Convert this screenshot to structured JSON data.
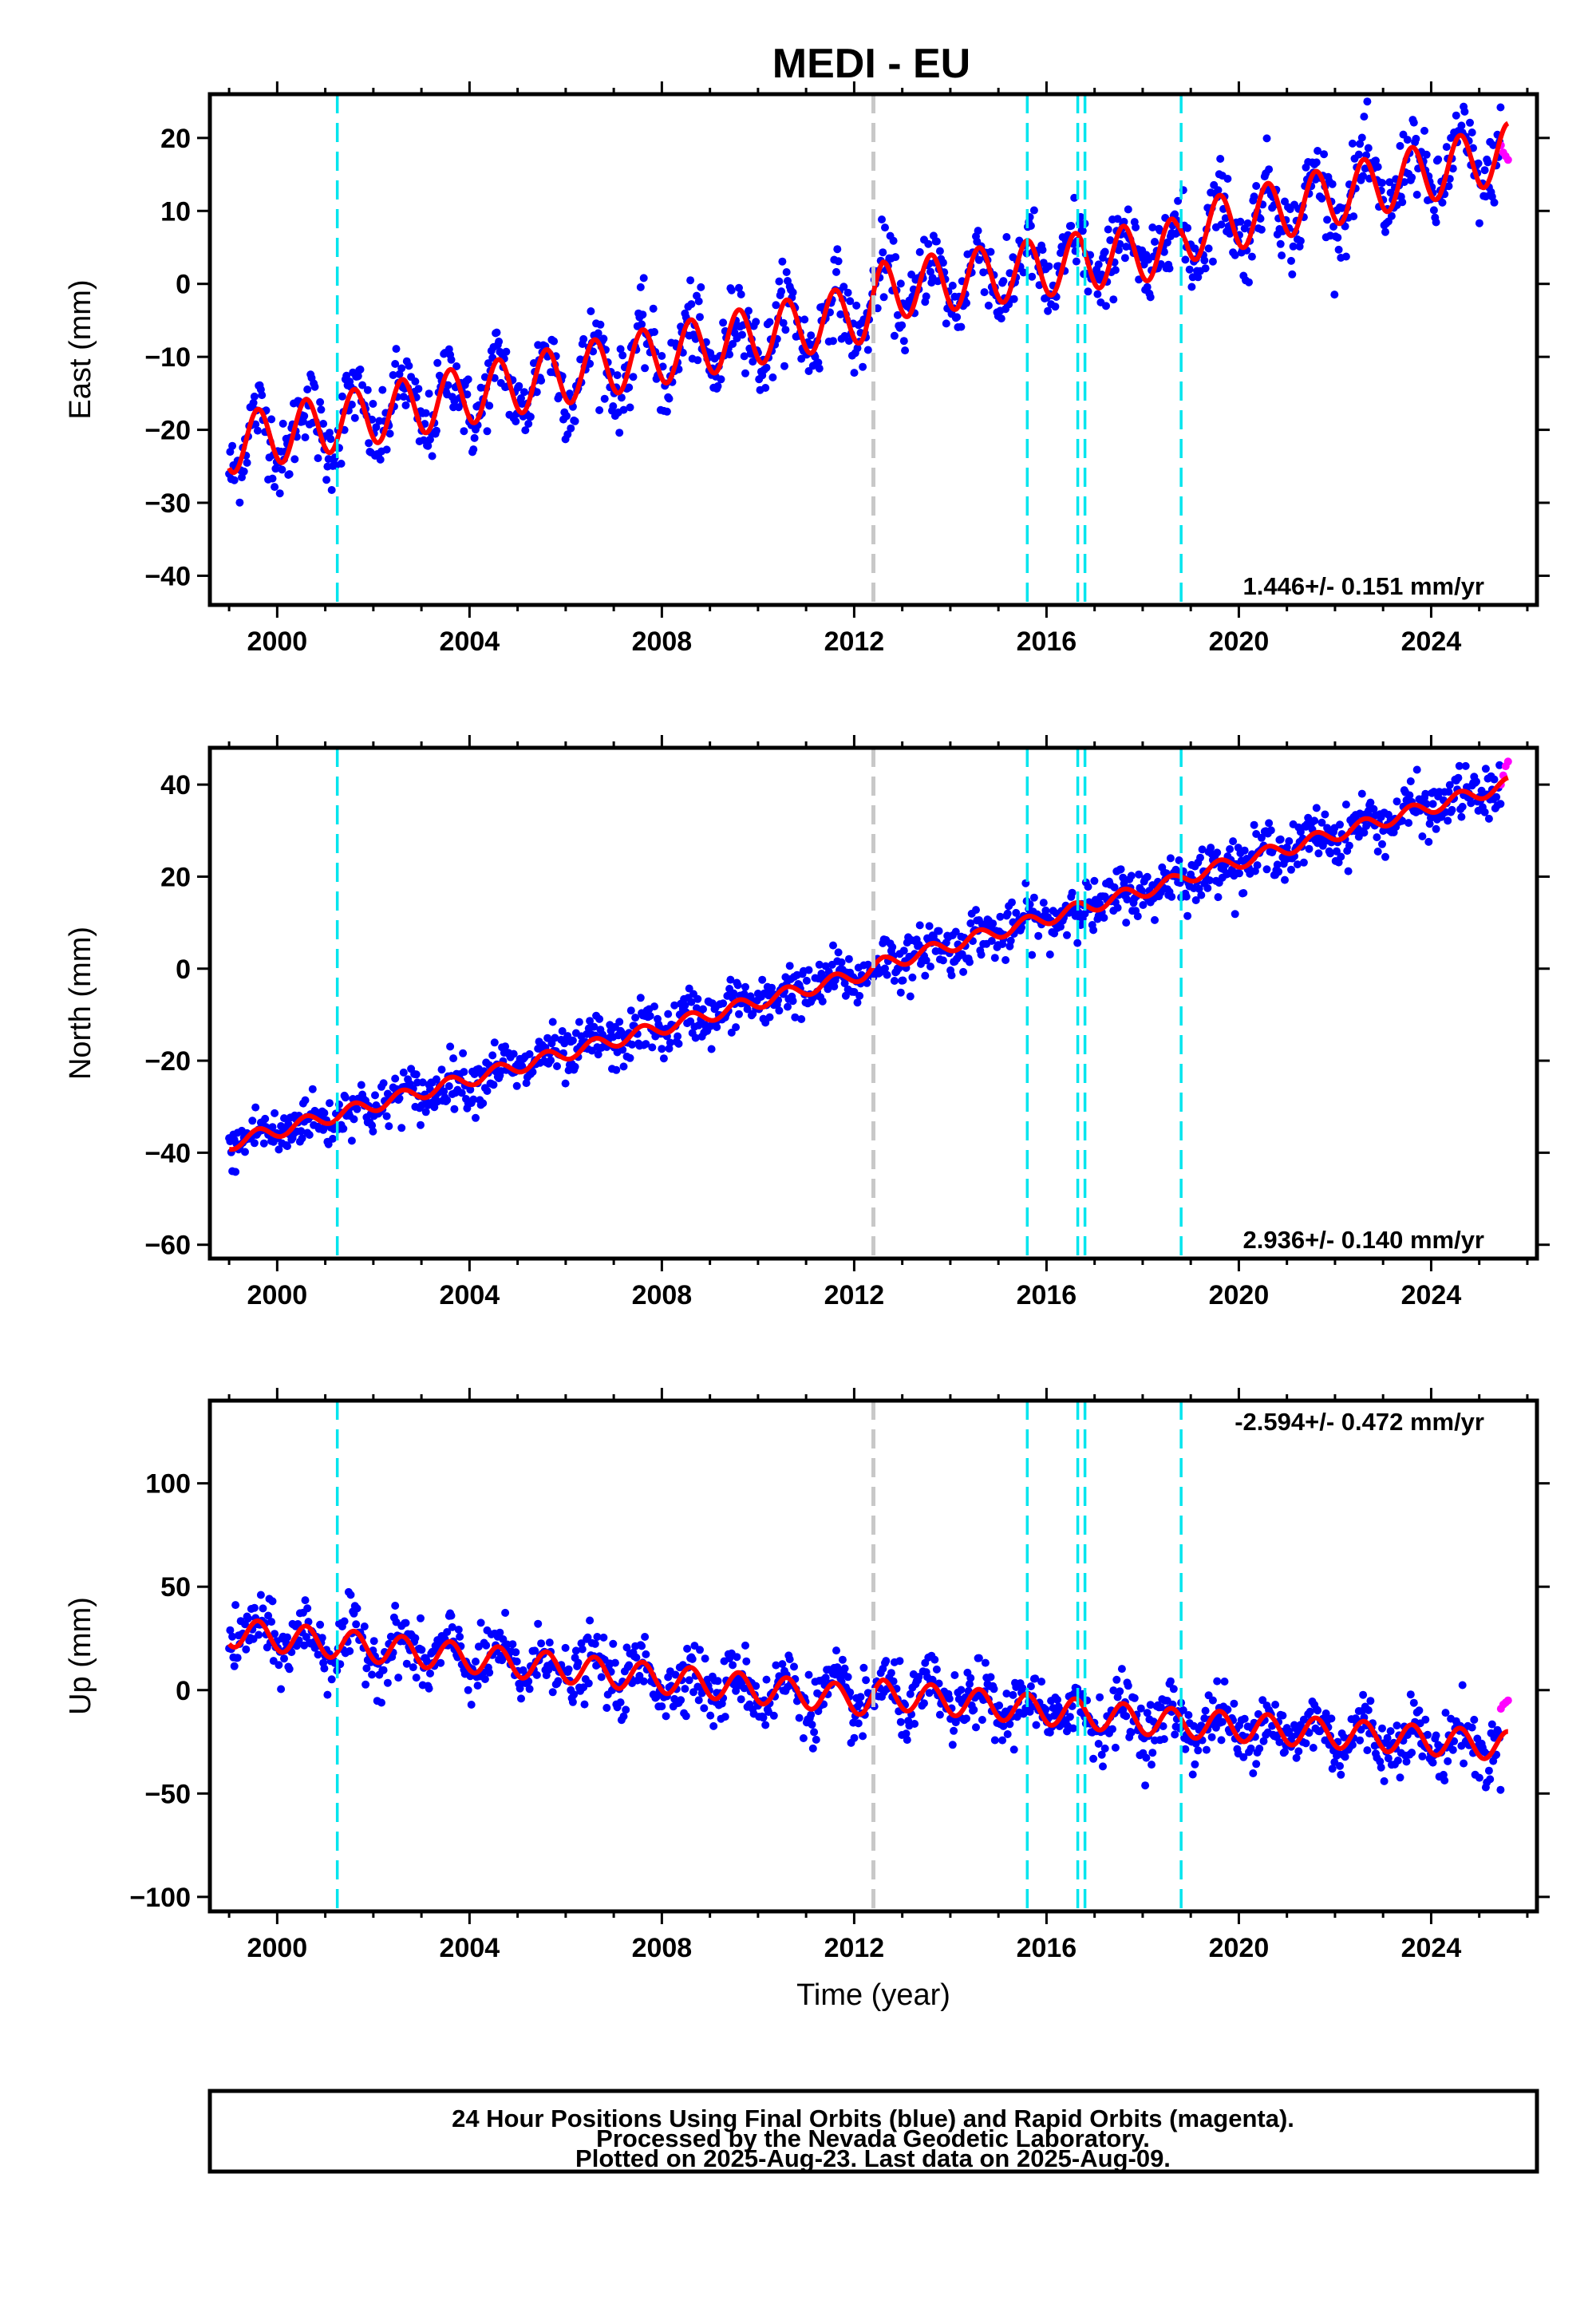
{
  "chart_data": {
    "type": "scatter",
    "title": "MEDI - EU",
    "xlabel": "Time (year)",
    "xlim": [
      1998.6,
      2026.2
    ],
    "xticks": [
      2000,
      2004,
      2008,
      2012,
      2016,
      2020,
      2024
    ],
    "grid": false,
    "colors": {
      "final_orbits": "#0000ff",
      "rapid_orbits": "#ff00ff",
      "model_fit": "#ff0000",
      "equipment_change": "#00e5ee",
      "earthquake": "#c8c8c8"
    },
    "event_lines": {
      "equipment_change": [
        2001.25,
        2015.6,
        2016.65,
        2016.8,
        2018.8
      ],
      "earthquake": [
        2012.4
      ]
    },
    "panels": [
      {
        "key": "east",
        "ylabel": "East (mm)",
        "ylim": [
          -44,
          26
        ],
        "yticks": [
          -40,
          -30,
          -20,
          -10,
          0,
          10,
          20
        ],
        "rate_label": "1.446+/- 0.151 mm/yr",
        "trend_at_years": {
          "x": [
            1999.0,
            2012.2,
            2012.6,
            2018.7,
            2018.9,
            2025.6
          ],
          "y": [
            -22.0,
            -4.0,
            -1.0,
            5.0,
            7.0,
            18.0
          ]
        },
        "seasonal_amplitude": 4,
        "rapid_points": {
          "x": [
            2025.45,
            2025.5,
            2025.55,
            2025.6
          ],
          "y": [
            19.0,
            18.0,
            17.5,
            17.0
          ]
        }
      },
      {
        "key": "north",
        "ylabel": "North (mm)",
        "ylim": [
          -63,
          48
        ],
        "yticks": [
          -60,
          -40,
          -20,
          0,
          20,
          40
        ],
        "rate_label": "2.936+/- 0.140 mm/yr",
        "trend_at_years": {
          "x": [
            1999.0,
            2012.2,
            2012.6,
            2018.7,
            2018.9,
            2025.6
          ],
          "y": [
            -38.0,
            -1.0,
            1.0,
            19.0,
            20.0,
            40.0
          ]
        },
        "seasonal_amplitude": 1.5,
        "rapid_points": {
          "x": [
            2025.45,
            2025.5,
            2025.55,
            2025.6
          ],
          "y": [
            40.0,
            42.0,
            44.0,
            45.0
          ]
        }
      },
      {
        "key": "up",
        "ylabel": "Up (mm)",
        "ylim": [
          -107,
          140
        ],
        "yticks": [
          -100,
          -50,
          0,
          50,
          100
        ],
        "rate_label": "-2.594+/- 0.472 mm/yr",
        "trend_at_years": {
          "x": [
            1999.0,
            2012.2,
            2012.6,
            2018.7,
            2018.9,
            2025.6
          ],
          "y": [
            28.0,
            -5.0,
            -2.0,
            -16.0,
            -16.0,
            -27.0
          ]
        },
        "seasonal_amplitude": 7,
        "rapid_points": {
          "x": [
            2025.45,
            2025.5,
            2025.55,
            2025.6
          ],
          "y": [
            -9.0,
            -7.0,
            -6.0,
            -5.0
          ]
        }
      }
    ]
  },
  "footer": {
    "line1": "24 Hour Positions Using Final Orbits (blue) and Rapid Orbits (magenta).",
    "line2": "Processed by the Nevada Geodetic Laboratory.",
    "line3": "Plotted on 2025-Aug-23. Last data on 2025-Aug-09."
  }
}
